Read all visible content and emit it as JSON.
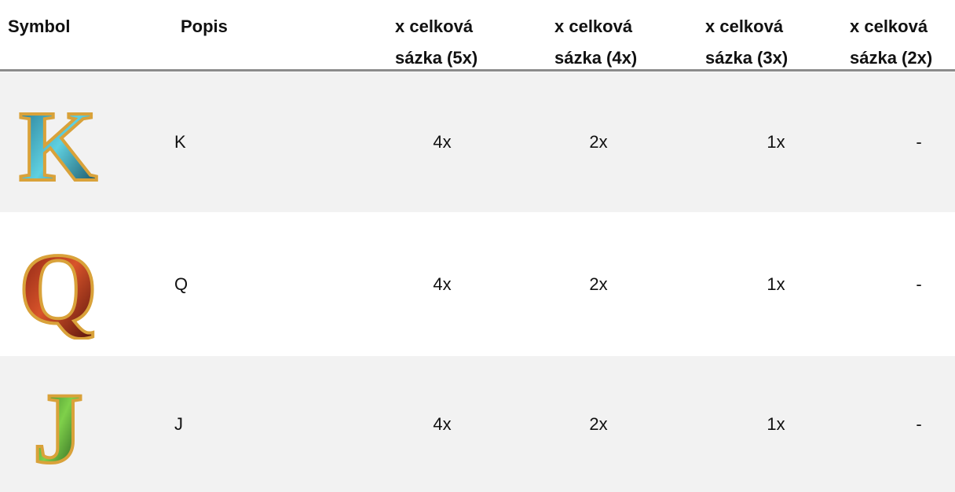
{
  "table": {
    "header": [
      "Symbol",
      "Popis",
      "x celková sázka (5x)",
      "x celková sázka (4x)",
      "x celková sázka (3x)",
      "x celková sázka (2x)"
    ],
    "rows": [
      {
        "description": "K",
        "values": [
          "4x",
          "2x",
          "1x",
          "-"
        ]
      },
      {
        "description": "Q",
        "values": [
          "4x",
          "2x",
          "1x",
          "-"
        ]
      },
      {
        "description": "J",
        "values": [
          "4x",
          "2x",
          "1x",
          "-"
        ]
      }
    ]
  }
}
